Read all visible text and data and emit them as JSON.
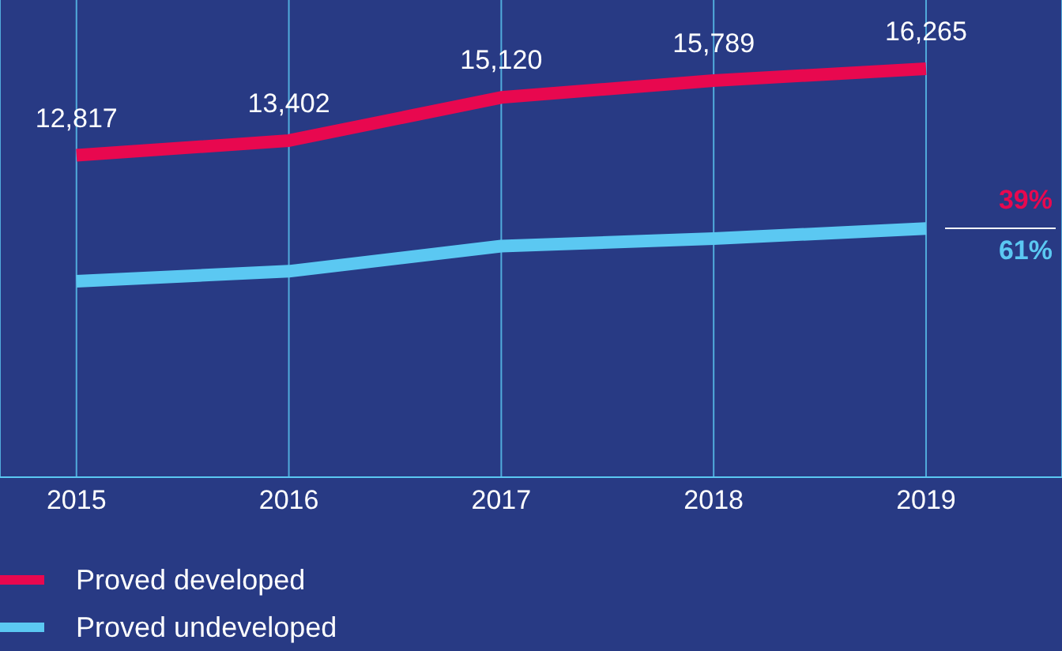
{
  "chart_data": {
    "type": "line",
    "x": [
      2015,
      2016,
      2017,
      2018,
      2019
    ],
    "series": [
      {
        "name": "Proved developed",
        "color": "#e8084f",
        "values": [
          12817,
          13402,
          15120,
          15789,
          16265
        ],
        "value_labels": [
          "12,817",
          "13,402",
          "15,120",
          "15,789",
          "16,265"
        ]
      },
      {
        "name": "Proved undeveloped",
        "color": "#5bc8f2",
        "values": [
          7800,
          8200,
          9200,
          9500,
          9900
        ]
      }
    ],
    "xlim": [
      2014.64,
      2019.64
    ],
    "xticks": [
      2015,
      2016,
      2017,
      2018,
      2019
    ],
    "ylim": [
      0,
      19000
    ],
    "tick_labels": "x",
    "grid": "x",
    "legend": "bottom left",
    "marker": "none",
    "line_style": "solid",
    "annotations": [
      "39%",
      "61%"
    ]
  }
}
